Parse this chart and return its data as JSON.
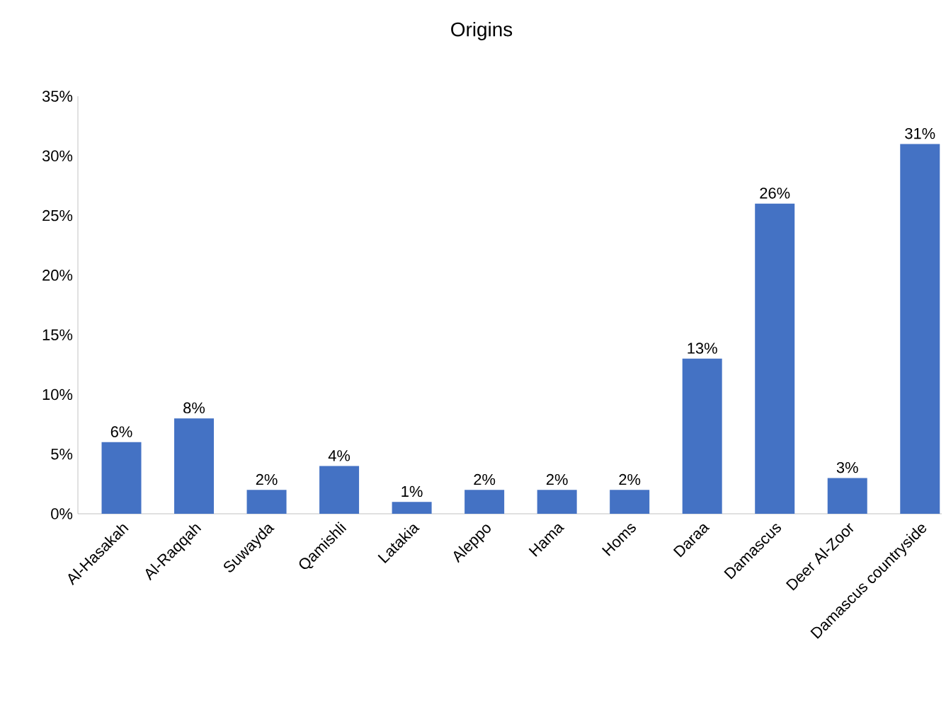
{
  "chart_data": {
    "type": "bar",
    "title": "Origins",
    "categories": [
      "Al-Hasakah",
      "Al-Raqqah",
      "Suwayda",
      "Qamishli",
      "Latakia",
      "Aleppo",
      "Hama",
      "Homs",
      "Daraa",
      "Damascus",
      "Deer Al-Zoor",
      "Damascus countryside"
    ],
    "values": [
      6,
      8,
      2,
      4,
      1,
      2,
      2,
      2,
      13,
      26,
      3,
      31
    ],
    "value_labels": [
      "6%",
      "8%",
      "2%",
      "4%",
      "1%",
      "2%",
      "2%",
      "2%",
      "13%",
      "26%",
      "3%",
      "31%"
    ],
    "color": "#4472c4",
    "ylim": [
      0,
      35
    ],
    "yticks": [
      {
        "value": 0,
        "label": "0%"
      },
      {
        "value": 5,
        "label": "5%"
      },
      {
        "value": 10,
        "label": "10%"
      },
      {
        "value": 15,
        "label": "15%"
      },
      {
        "value": 20,
        "label": "20%"
      },
      {
        "value": 25,
        "label": "25%"
      },
      {
        "value": 30,
        "label": "30%"
      },
      {
        "value": 35,
        "label": "35%"
      }
    ]
  }
}
